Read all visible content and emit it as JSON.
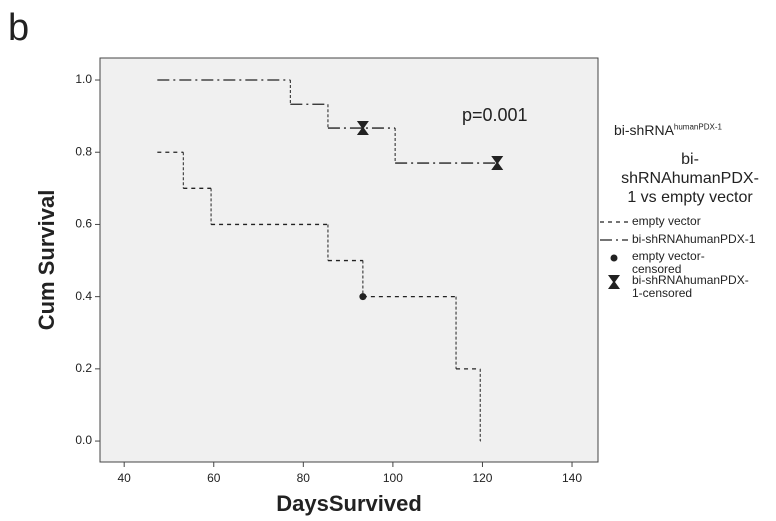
{
  "chart_data": {
    "type": "step",
    "panel_label": "b",
    "annotation": "p=0.001",
    "xlabel": "DaysSurvived",
    "ylabel": "Cum Survival",
    "legend_title": {
      "main": "bi-shRNA",
      "sup": "humanPDX-1"
    },
    "legend_subtitle": "bi-shRNAhumanPDX-1 vs empty vector",
    "xlim": [
      34.6,
      145.8
    ],
    "ylim": [
      -0.058,
      1.061
    ],
    "xticks": [
      40,
      60,
      80,
      100,
      120,
      140
    ],
    "yticks": [
      {
        "value": 0,
        "label": "0.0"
      },
      {
        "value": 0.2,
        "label": "0.2"
      },
      {
        "value": 0.4,
        "label": "0.4"
      },
      {
        "value": 0.6,
        "label": "0.6"
      },
      {
        "value": 0.8,
        "label": "0.8"
      },
      {
        "value": 1,
        "label": "1.0"
      }
    ],
    "series": [
      {
        "name": "empty vector",
        "color": "#222222",
        "x": [
          47.4,
          53.2,
          59.4,
          85.5,
          93.3,
          114.1,
          119.5
        ],
        "values": [
          0.8,
          0.7,
          0.6,
          0.5,
          0.4,
          0.2,
          0
        ]
      },
      {
        "name": "bi-shRNAhumanPDX-1",
        "color": "#222222",
        "x": [
          47.4,
          77.1,
          85.5,
          100.5
        ],
        "values": [
          1,
          0.933,
          0.867,
          0.77
        ]
      }
    ],
    "censored": [
      {
        "name": "empty vector-censored",
        "color": "#222222",
        "x": [
          93.3
        ],
        "values": [
          0.4
        ]
      },
      {
        "name": "bi-shRNAhumanPDX-1-censored",
        "color": "#222222",
        "x": [
          93.3,
          123.3
        ],
        "values": [
          0.867,
          0.77
        ]
      }
    ]
  }
}
